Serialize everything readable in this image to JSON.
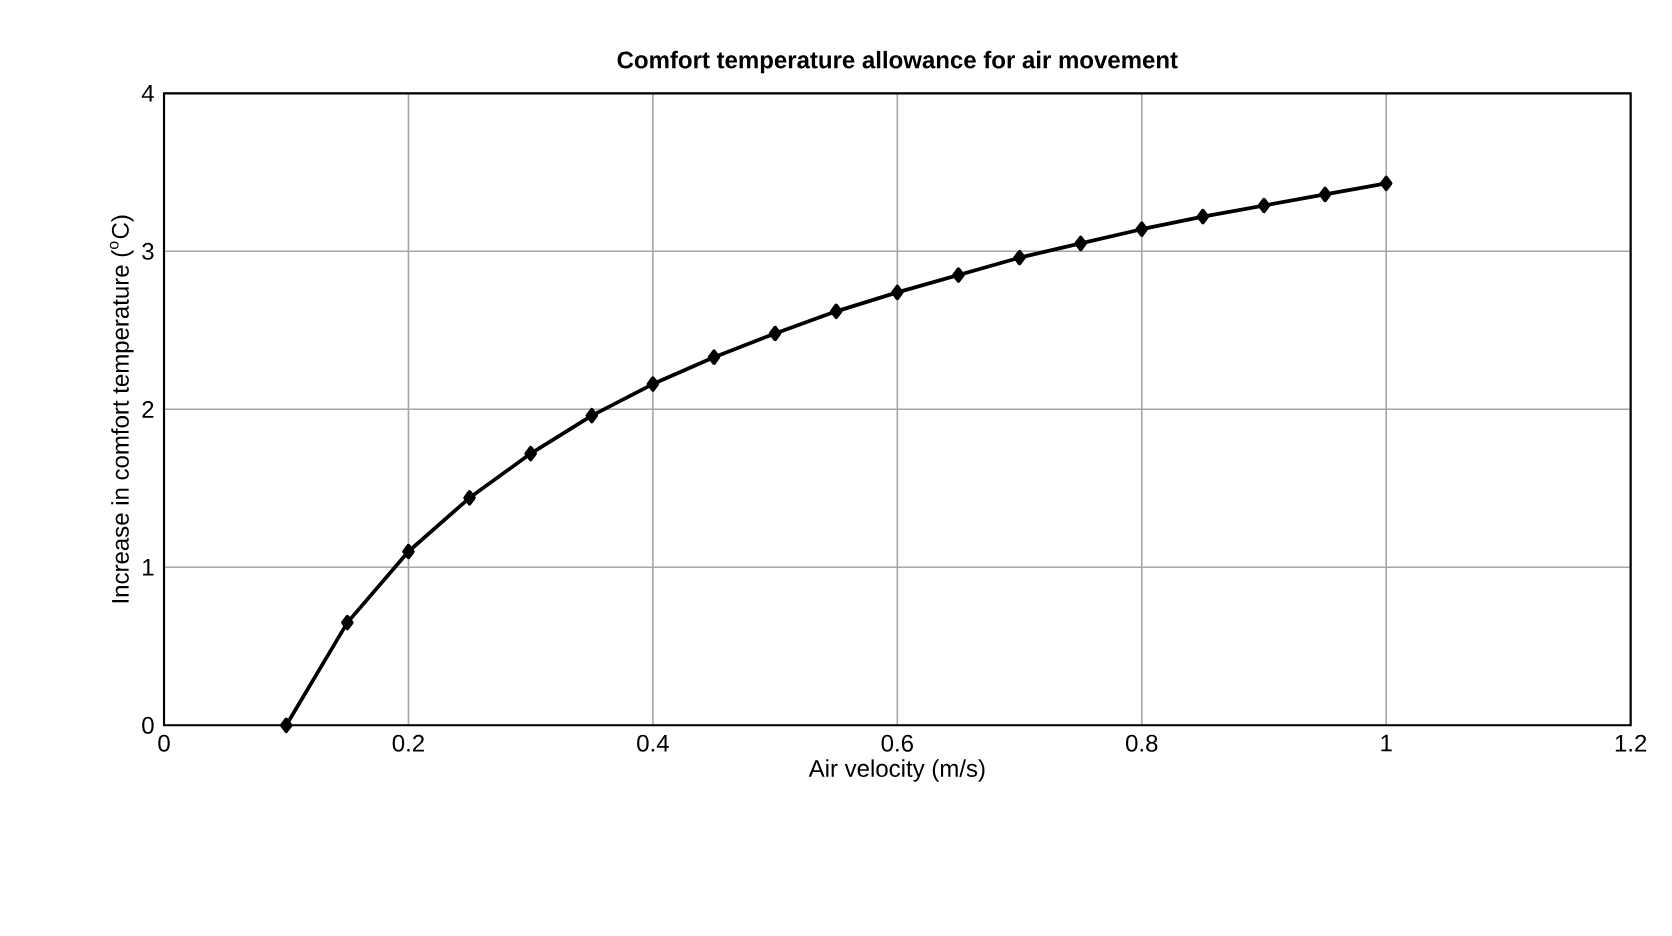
{
  "chart_data": {
    "type": "line",
    "title": "Comfort temperature allowance for air movement",
    "xlabel": "Air velocity (m/s)",
    "ylabel": "Increase in comfort temperature ($^{o}$C)",
    "x": [
      0.1,
      0.15,
      0.2,
      0.25,
      0.3,
      0.35,
      0.4,
      0.45,
      0.5,
      0.55,
      0.6,
      0.65,
      0.7,
      0.75,
      0.8,
      0.85,
      0.9,
      0.95,
      1.0
    ],
    "series": [
      {
        "color": "#000000",
        "values": [
          0.0,
          0.65,
          1.1,
          1.44,
          1.72,
          1.96,
          2.16,
          2.33,
          2.48,
          2.62,
          2.74,
          2.85,
          2.96,
          3.05,
          3.14,
          3.22,
          3.29,
          3.36,
          3.43
        ]
      }
    ],
    "xlim": [
      0,
      1.2
    ],
    "ylim": [
      0,
      4
    ],
    "xticks": [
      0,
      0.2,
      0.4,
      0.6,
      0.8,
      1,
      1.2
    ],
    "yticks": [
      0,
      1,
      2,
      3,
      4
    ],
    "grid": true,
    "marker": "diamond",
    "line_style": "solid"
  }
}
